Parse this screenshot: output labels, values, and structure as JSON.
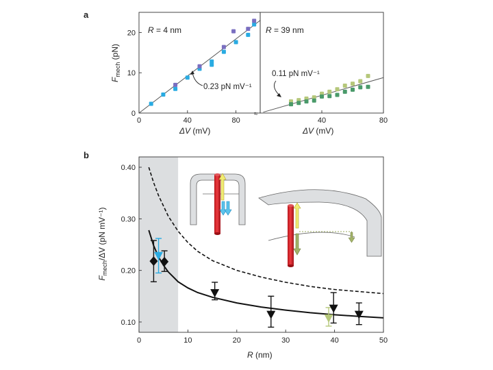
{
  "chart_data": [
    {
      "panel": "a",
      "type": "scatter",
      "subpanels": [
        {
          "label": "R = 4 nm",
          "label_parts": {
            "var": "R",
            "rest": " = 4 nm"
          },
          "x_ticks": [
            "0",
            "40",
            "80"
          ],
          "y_ticks": [
            "0",
            "10",
            "20"
          ],
          "xlim": [
            0,
            100
          ],
          "ylim": [
            0,
            25
          ],
          "fit": {
            "slope": 0.23,
            "intercept": 0,
            "label": "0.23 pN mV⁻¹"
          },
          "series": [
            {
              "name": "cyan",
              "color": "#29abe2",
              "points": [
                [
                  10,
                  2.3
                ],
                [
                  20,
                  4.6
                ],
                [
                  30,
                  6.0
                ],
                [
                  40,
                  8.8
                ],
                [
                  50,
                  11.0
                ],
                [
                  60,
                  12.0
                ],
                [
                  60,
                  12.8
                ],
                [
                  70,
                  15.2
                ],
                [
                  80,
                  17.6
                ],
                [
                  90,
                  19.4
                ],
                [
                  95,
                  22.0
                ]
              ]
            },
            {
              "name": "violet",
              "color": "#7a6fc0",
              "points": [
                [
                  30,
                  7.0
                ],
                [
                  50,
                  11.6
                ],
                [
                  70,
                  16.4
                ],
                [
                  78,
                  20.3
                ],
                [
                  90,
                  20.9
                ],
                [
                  95,
                  22.9
                ]
              ]
            }
          ]
        },
        {
          "label": "R = 39 nm",
          "label_parts": {
            "var": "R",
            "rest": " = 39 nm"
          },
          "x_ticks": [
            "40",
            "80"
          ],
          "xlim": [
            0,
            80
          ],
          "ylim": [
            0,
            25
          ],
          "fit": {
            "slope": 0.11,
            "intercept": 0,
            "label": "0.11 pN mV⁻¹"
          },
          "series": [
            {
              "name": "light-green",
              "color": "#b5c77a",
              "points": [
                [
                  20,
                  2.9
                ],
                [
                  25,
                  3.2
                ],
                [
                  30,
                  3.6
                ],
                [
                  35,
                  3.9
                ],
                [
                  40,
                  4.8
                ],
                [
                  45,
                  5.3
                ],
                [
                  50,
                  5.9
                ],
                [
                  55,
                  6.8
                ],
                [
                  60,
                  7.3
                ],
                [
                  65,
                  7.9
                ],
                [
                  70,
                  9.2
                ]
              ]
            },
            {
              "name": "dark-green",
              "color": "#4a9a6a",
              "points": [
                [
                  20,
                  2.2
                ],
                [
                  25,
                  2.5
                ],
                [
                  30,
                  2.9
                ],
                [
                  35,
                  3.1
                ],
                [
                  40,
                  4.1
                ],
                [
                  45,
                  4.2
                ],
                [
                  50,
                  4.5
                ],
                [
                  55,
                  5.3
                ],
                [
                  60,
                  5.8
                ],
                [
                  65,
                  6.4
                ],
                [
                  70,
                  6.5
                ]
              ]
            }
          ]
        }
      ],
      "xlabel": {
        "var": "ΔV",
        "unit": " (mV)"
      },
      "ylabel": {
        "pre": "F",
        "sub": "mech",
        "unit": " (pN)"
      }
    },
    {
      "panel": "b",
      "type": "scatter",
      "xlabel": {
        "var": "R",
        "unit": " (nm)"
      },
      "ylabel": {
        "pre": "F",
        "sub": "mech",
        "mid": "/ΔV",
        "unit": " (pN mV⁻¹)"
      },
      "xlim": [
        0,
        50
      ],
      "ylim": [
        0.08,
        0.42
      ],
      "x_ticks": [
        "0",
        "10",
        "20",
        "30",
        "40",
        "50"
      ],
      "y_ticks": [
        "0.10",
        "0.20",
        "0.30",
        "0.40"
      ],
      "shaded_region": {
        "x_from": 0,
        "x_to": 8
      },
      "points": [
        {
          "x": 3.0,
          "y": 0.218,
          "lo": 0.178,
          "hi": 0.258,
          "marker": "diamond",
          "color": "#111111"
        },
        {
          "x": 5.2,
          "y": 0.217,
          "lo": 0.198,
          "hi": 0.238,
          "marker": "diamond",
          "color": "#111111"
        },
        {
          "x": 4.0,
          "y": 0.229,
          "lo": 0.195,
          "hi": 0.262,
          "marker": "triangle-down",
          "color": "#29abe2"
        },
        {
          "x": 15.5,
          "y": 0.157,
          "lo": 0.143,
          "hi": 0.177,
          "marker": "triangle-down",
          "color": "#111111"
        },
        {
          "x": 27.0,
          "y": 0.115,
          "lo": 0.09,
          "hi": 0.15,
          "marker": "triangle-down",
          "color": "#111111"
        },
        {
          "x": 38.8,
          "y": 0.108,
          "lo": 0.092,
          "hi": 0.128,
          "marker": "triangle-down",
          "color": "#b5c77a"
        },
        {
          "x": 39.8,
          "y": 0.127,
          "lo": 0.098,
          "hi": 0.157,
          "marker": "triangle-down",
          "color": "#111111"
        },
        {
          "x": 45.0,
          "y": 0.115,
          "lo": 0.095,
          "hi": 0.137,
          "marker": "triangle-down",
          "color": "#111111"
        }
      ],
      "curves": [
        {
          "name": "solid model",
          "style": "solid",
          "points": [
            [
              2.0,
              0.278
            ],
            [
              3,
              0.248
            ],
            [
              4,
              0.226
            ],
            [
              5,
              0.21
            ],
            [
              6,
              0.197
            ],
            [
              8,
              0.178
            ],
            [
              10,
              0.166
            ],
            [
              12,
              0.157
            ],
            [
              15,
              0.148
            ],
            [
              20,
              0.137
            ],
            [
              25,
              0.129
            ],
            [
              30,
              0.123
            ],
            [
              35,
              0.118
            ],
            [
              40,
              0.114
            ],
            [
              45,
              0.111
            ],
            [
              50,
              0.108
            ]
          ]
        },
        {
          "name": "dashed model",
          "style": "dashed",
          "points": [
            [
              2.0,
              0.4
            ],
            [
              3,
              0.37
            ],
            [
              4,
              0.345
            ],
            [
              6,
              0.305
            ],
            [
              8,
              0.276
            ],
            [
              10,
              0.254
            ],
            [
              12,
              0.237
            ],
            [
              15,
              0.219
            ],
            [
              20,
              0.2
            ],
            [
              25,
              0.187
            ],
            [
              30,
              0.177
            ],
            [
              35,
              0.169
            ],
            [
              40,
              0.163
            ],
            [
              45,
              0.159
            ],
            [
              50,
              0.155
            ]
          ]
        }
      ]
    }
  ]
}
